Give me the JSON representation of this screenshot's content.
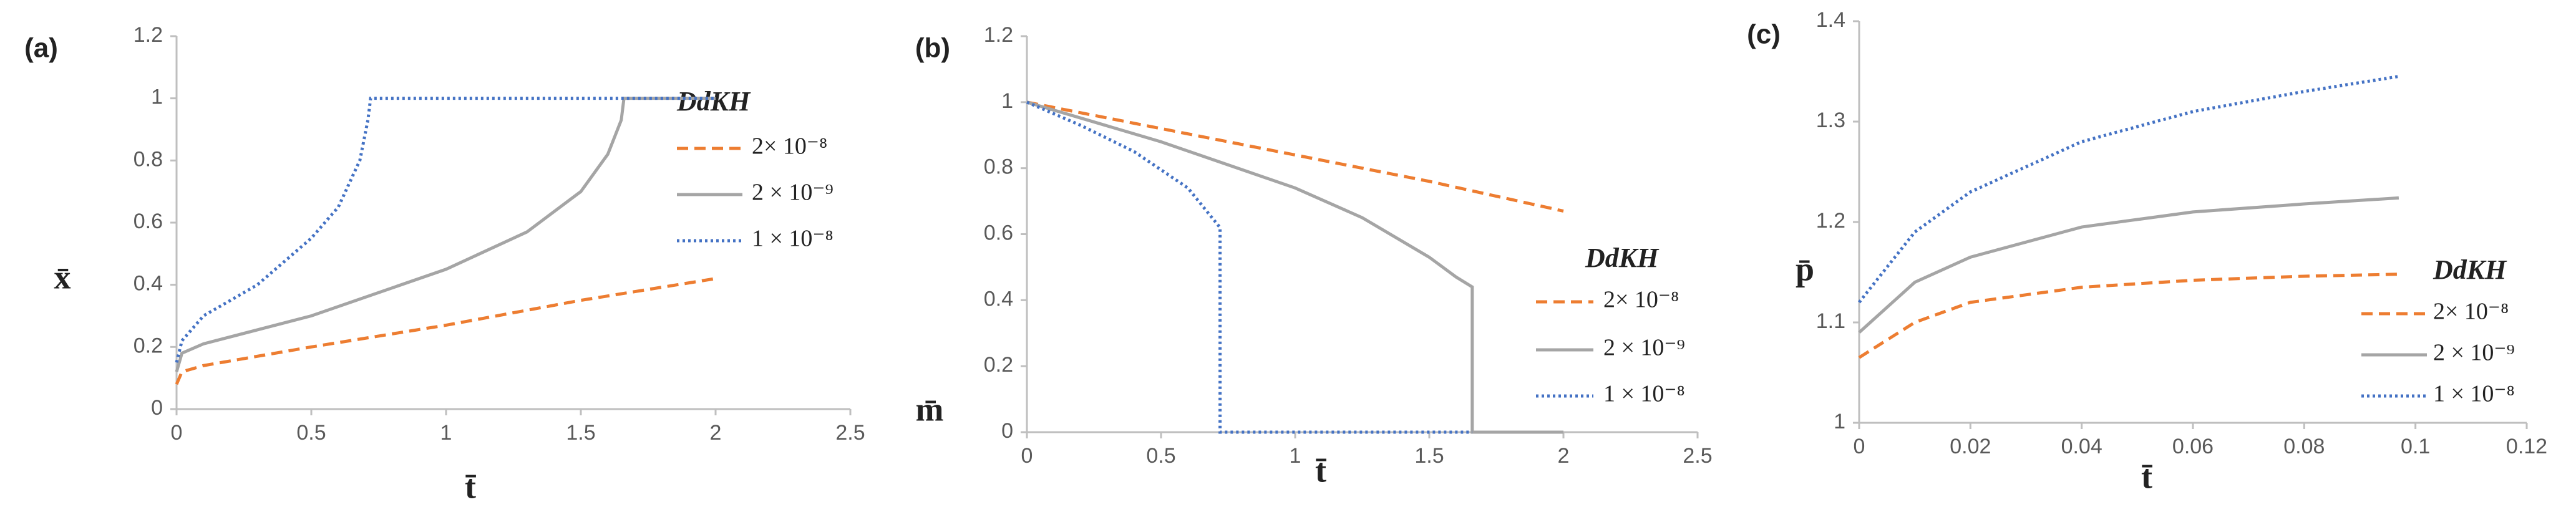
{
  "chart_data": [
    {
      "type": "line",
      "panel_label": "(a)",
      "x_label": "t̄",
      "y_label": "x̄",
      "legend_title": "DdKH",
      "xlim": [
        0,
        2.5
      ],
      "xticks": [
        0,
        0.5,
        1,
        1.5,
        2,
        2.5
      ],
      "ylim": [
        0,
        1.2
      ],
      "yticks": [
        0,
        0.2,
        0.4,
        0.6,
        0.8,
        1,
        1.2
      ],
      "series": [
        {
          "name": "2× 10⁻⁸",
          "color": "#ED7D31",
          "style": "dashed",
          "x": [
            0,
            0.02,
            0.1,
            0.5,
            1,
            1.5,
            2
          ],
          "values": [
            0.08,
            0.12,
            0.14,
            0.2,
            0.27,
            0.35,
            0.42
          ]
        },
        {
          "name": "2 × 10⁻⁹",
          "color": "#A5A5A5",
          "style": "solid",
          "x": [
            0,
            0.02,
            0.1,
            0.5,
            1,
            1.3,
            1.5,
            1.6,
            1.65,
            1.66,
            2
          ],
          "values": [
            0.12,
            0.18,
            0.21,
            0.3,
            0.45,
            0.57,
            0.7,
            0.82,
            0.93,
            1,
            1
          ]
        },
        {
          "name": "1 × 10⁻⁸",
          "color": "#4472C4",
          "style": "dotted",
          "x": [
            0,
            0.02,
            0.1,
            0.3,
            0.5,
            0.6,
            0.68,
            0.71,
            0.72,
            2
          ],
          "values": [
            0.15,
            0.22,
            0.3,
            0.4,
            0.55,
            0.65,
            0.8,
            0.93,
            1,
            1
          ]
        }
      ]
    },
    {
      "type": "line",
      "panel_label": "(b)",
      "x_label": "t̄",
      "y_label": "m̄",
      "legend_title": "DdKH",
      "xlim": [
        0,
        2.5
      ],
      "xticks": [
        0,
        0.5,
        1,
        1.5,
        2,
        2.5
      ],
      "ylim": [
        0,
        1.2
      ],
      "yticks": [
        0,
        0.2,
        0.4,
        0.6,
        0.8,
        1,
        1.2
      ],
      "series": [
        {
          "name": "2× 10⁻⁸",
          "color": "#ED7D31",
          "style": "dashed",
          "x": [
            0,
            0.5,
            1,
            1.5,
            2
          ],
          "values": [
            1,
            0.92,
            0.84,
            0.76,
            0.67
          ]
        },
        {
          "name": "2 × 10⁻⁹",
          "color": "#A5A5A5",
          "style": "solid",
          "x": [
            0,
            0.25,
            0.5,
            0.75,
            1,
            1.25,
            1.5,
            1.6,
            1.66,
            1.66,
            2
          ],
          "values": [
            1,
            0.94,
            0.88,
            0.81,
            0.74,
            0.65,
            0.53,
            0.47,
            0.44,
            0,
            0
          ]
        },
        {
          "name": "1 × 10⁻⁸",
          "color": "#4472C4",
          "style": "dotted",
          "x": [
            0,
            0.2,
            0.4,
            0.6,
            0.7,
            0.72,
            0.72,
            1.66
          ],
          "values": [
            1,
            0.93,
            0.85,
            0.74,
            0.64,
            0.62,
            0,
            0
          ]
        }
      ]
    },
    {
      "type": "line",
      "panel_label": "(c)",
      "x_label": "t̄",
      "y_label": "p̄",
      "legend_title": "DdKH",
      "xlim": [
        0,
        0.12
      ],
      "xticks": [
        0,
        0.02,
        0.04,
        0.06,
        0.08,
        0.1,
        0.12
      ],
      "ylim": [
        1,
        1.4
      ],
      "yticks": [
        1,
        1.1,
        1.2,
        1.3,
        1.4
      ],
      "series": [
        {
          "name": "2× 10⁻⁸",
          "color": "#ED7D31",
          "style": "dashed",
          "x": [
            0,
            0.01,
            0.02,
            0.04,
            0.06,
            0.08,
            0.097
          ],
          "values": [
            1.065,
            1.1,
            1.12,
            1.135,
            1.142,
            1.146,
            1.148
          ]
        },
        {
          "name": "2 × 10⁻⁹",
          "color": "#A5A5A5",
          "style": "solid",
          "x": [
            0,
            0.01,
            0.02,
            0.04,
            0.06,
            0.08,
            0.097
          ],
          "values": [
            1.09,
            1.14,
            1.165,
            1.195,
            1.21,
            1.218,
            1.224
          ]
        },
        {
          "name": "1 × 10⁻⁸",
          "color": "#4472C4",
          "style": "dotted",
          "x": [
            0,
            0.01,
            0.02,
            0.04,
            0.06,
            0.08,
            0.097
          ],
          "values": [
            1.12,
            1.19,
            1.23,
            1.28,
            1.31,
            1.33,
            1.345
          ]
        }
      ]
    }
  ]
}
